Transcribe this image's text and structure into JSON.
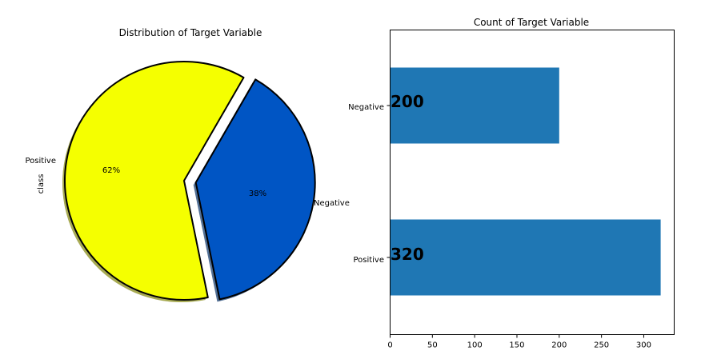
{
  "chart_data": [
    {
      "type": "pie",
      "title": "Distribution of Target  Variable",
      "ylabel": "class",
      "slices": [
        {
          "label": "Positive",
          "value": 320,
          "percent_label": "62%",
          "color": "#f5ff00",
          "explode": 0.0
        },
        {
          "label": "Negative",
          "value": 200,
          "percent_label": "38%",
          "color": "#0055c4",
          "explode": 0.1
        }
      ],
      "shadow": true
    },
    {
      "type": "bar",
      "orientation": "horizontal",
      "title": "Count of Target Variable",
      "categories": [
        "Positive",
        "Negative"
      ],
      "values": [
        320,
        200
      ],
      "value_labels": [
        "320",
        "200"
      ],
      "xticks": [
        0,
        50,
        100,
        150,
        200,
        250,
        300
      ],
      "xlim": [
        0,
        336
      ],
      "bar_color": "#1f77b4",
      "grid": false
    }
  ]
}
